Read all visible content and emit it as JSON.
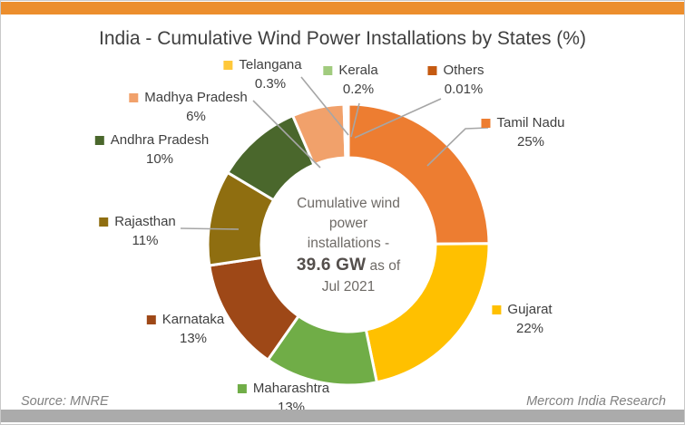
{
  "page": {
    "title": "India - Cumulative Wind Power Installations by States (%)",
    "source_note": "Source: MNRE",
    "brand": "Mercom India Research",
    "accent_bar_color": "#EC8E2D",
    "bottom_bar_color": "#ABABAB"
  },
  "chart_data": {
    "type": "pie",
    "subtype": "donut",
    "title": "India - Cumulative Wind Power Installations by States (%)",
    "unit": "%",
    "legend_position": "callout labels around donut",
    "slices": [
      {
        "name": "Tamil Nadu",
        "value": 25,
        "label": "25%",
        "color": "#ED7D31"
      },
      {
        "name": "Gujarat",
        "value": 22,
        "label": "22%",
        "color": "#FFC000"
      },
      {
        "name": "Maharashtra",
        "value": 13,
        "label": "13%",
        "color": "#70AD47"
      },
      {
        "name": "Karnataka",
        "value": 13,
        "label": "13%",
        "color": "#9E4817"
      },
      {
        "name": "Rajasthan",
        "value": 11,
        "label": "11%",
        "color": "#8F6E10"
      },
      {
        "name": "Andhra Pradesh",
        "value": 10,
        "label": "10%",
        "color": "#4A672C"
      },
      {
        "name": "Madhya Pradesh",
        "value": 6,
        "label": "6%",
        "color": "#F1A16B"
      },
      {
        "name": "Telangana",
        "value": 0.3,
        "label": "0.3%",
        "color": "#FFC83A"
      },
      {
        "name": "Kerala",
        "value": 0.2,
        "label": "0.2%",
        "color": "#A1CB7E"
      },
      {
        "name": "Others",
        "value": 0.01,
        "label": "0.01%",
        "color": "#C55A11"
      }
    ],
    "center_label": {
      "lines": [
        "Cumulative wind",
        "power",
        "installations -"
      ],
      "value": "39.6 GW",
      "value_suffix": "as of",
      "date_line": "Jul 2021"
    }
  }
}
